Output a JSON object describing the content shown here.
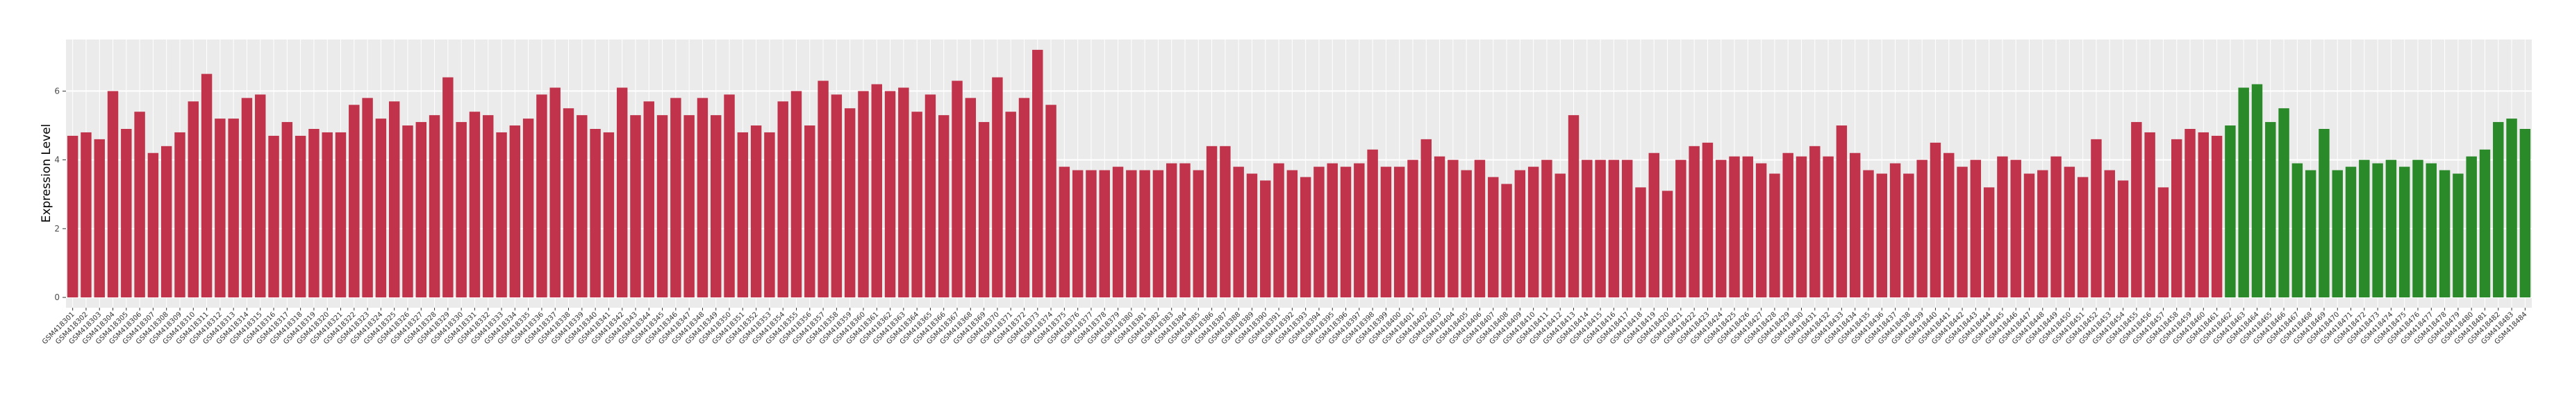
{
  "chart_data": {
    "type": "bar",
    "y_label": "Expression Level",
    "categories": [
      "GSM418301",
      "GSM418302",
      "GSM418303",
      "GSM418304",
      "GSM418305",
      "GSM418306",
      "GSM418307",
      "GSM418308",
      "GSM418309",
      "GSM418310",
      "GSM418311",
      "GSM418312",
      "GSM418313",
      "GSM418314",
      "GSM418315",
      "GSM418316",
      "GSM418317",
      "GSM418318",
      "GSM418319",
      "GSM418320",
      "GSM418321",
      "GSM418322",
      "GSM418323",
      "GSM418324",
      "GSM418325",
      "GSM418326",
      "GSM418327",
      "GSM418328",
      "GSM418329",
      "GSM418330",
      "GSM418331",
      "GSM418332",
      "GSM418333",
      "GSM418334",
      "GSM418335",
      "GSM418336",
      "GSM418337",
      "GSM418338",
      "GSM418339",
      "GSM418340",
      "GSM418341",
      "GSM418342",
      "GSM418343",
      "GSM418344",
      "GSM418345",
      "GSM418346",
      "GSM418347",
      "GSM418348",
      "GSM418349",
      "GSM418350",
      "GSM418351",
      "GSM418352",
      "GSM418353",
      "GSM418354",
      "GSM418355",
      "GSM418356",
      "GSM418357",
      "GSM418358",
      "GSM418359",
      "GSM418360",
      "GSM418361",
      "GSM418362",
      "GSM418363",
      "GSM418364",
      "GSM418365",
      "GSM418366",
      "GSM418367",
      "GSM418368",
      "GSM418369",
      "GSM418370",
      "GSM418371",
      "GSM418372",
      "GSM418373",
      "GSM418374",
      "GSM418375",
      "GSM418376",
      "GSM418377",
      "GSM418378",
      "GSM418379",
      "GSM418380",
      "GSM418381",
      "GSM418382",
      "GSM418383",
      "GSM418384",
      "GSM418385",
      "GSM418386",
      "GSM418387",
      "GSM418388",
      "GSM418389",
      "GSM418390",
      "GSM418391",
      "GSM418392",
      "GSM418393",
      "GSM418394",
      "GSM418395",
      "GSM418396",
      "GSM418397",
      "GSM418398",
      "GSM418399",
      "GSM418400",
      "GSM418401",
      "GSM418402",
      "GSM418403",
      "GSM418404",
      "GSM418405",
      "GSM418406",
      "GSM418407",
      "GSM418408",
      "GSM418409",
      "GSM418410",
      "GSM418411",
      "GSM418412",
      "GSM418413",
      "GSM418414",
      "GSM418415",
      "GSM418416",
      "GSM418417",
      "GSM418418",
      "GSM418419",
      "GSM418420",
      "GSM418421",
      "GSM418422",
      "GSM418423",
      "GSM418424",
      "GSM418425",
      "GSM418426",
      "GSM418427",
      "GSM418428",
      "GSM418429",
      "GSM418430",
      "GSM418431",
      "GSM418432",
      "GSM418433",
      "GSM418434",
      "GSM418435",
      "GSM418436",
      "GSM418437",
      "GSM418438",
      "GSM418439",
      "GSM418440",
      "GSM418441",
      "GSM418442",
      "GSM418443",
      "GSM418444",
      "GSM418445",
      "GSM418446",
      "GSM418447",
      "GSM418448",
      "GSM418449",
      "GSM418450",
      "GSM418451",
      "GSM418452",
      "GSM418453",
      "GSM418454",
      "GSM418455",
      "GSM418456",
      "GSM418457",
      "GSM418458",
      "GSM418459",
      "GSM418460",
      "GSM418461",
      "GSM418462",
      "GSM418463",
      "GSM418464",
      "GSM418465",
      "GSM418466",
      "GSM418467",
      "GSM418468",
      "GSM418469",
      "GSM418470",
      "GSM418471",
      "GSM418472",
      "GSM418473",
      "GSM418474",
      "GSM418475",
      "GSM418476",
      "GSM418477",
      "GSM418478",
      "GSM418479",
      "GSM418480",
      "GSM418481",
      "GSM418482",
      "GSM418483",
      "GSM418484"
    ],
    "values": [
      4.7,
      4.8,
      4.6,
      6.0,
      4.9,
      5.4,
      4.2,
      4.4,
      4.8,
      5.7,
      6.5,
      5.2,
      5.2,
      5.8,
      5.9,
      4.7,
      5.1,
      4.7,
      4.9,
      4.8,
      4.8,
      5.6,
      5.8,
      5.2,
      5.7,
      5.0,
      5.1,
      5.3,
      6.4,
      5.1,
      5.4,
      5.3,
      4.8,
      5.0,
      5.2,
      5.9,
      6.1,
      5.5,
      5.3,
      4.9,
      4.8,
      6.1,
      5.3,
      5.7,
      5.3,
      5.8,
      5.3,
      5.8,
      5.3,
      5.9,
      4.8,
      5.0,
      4.8,
      5.7,
      6.0,
      5.0,
      6.3,
      5.9,
      5.5,
      6.0,
      6.2,
      6.0,
      6.1,
      5.4,
      5.9,
      5.3,
      6.3,
      5.8,
      5.1,
      6.4,
      5.4,
      5.8,
      7.2,
      5.6,
      3.8,
      3.7,
      3.7,
      3.7,
      3.8,
      3.7,
      3.7,
      3.7,
      3.9,
      3.9,
      3.7,
      4.4,
      4.4,
      3.8,
      3.6,
      3.4,
      3.9,
      3.7,
      3.5,
      3.8,
      3.9,
      3.8,
      3.9,
      4.3,
      3.8,
      3.8,
      4.0,
      4.6,
      4.1,
      4.0,
      3.7,
      4.0,
      3.5,
      3.3,
      3.7,
      3.8,
      4.0,
      3.6,
      5.3,
      4.0,
      4.0,
      4.0,
      4.0,
      3.2,
      4.2,
      3.1,
      4.0,
      4.4,
      4.5,
      4.0,
      4.1,
      4.1,
      3.9,
      3.6,
      4.2,
      4.1,
      4.4,
      4.1,
      5.0,
      4.2,
      3.7,
      3.6,
      3.9,
      3.6,
      4.0,
      4.5,
      4.2,
      3.8,
      4.0,
      3.2,
      4.1,
      4.0,
      3.6,
      3.7,
      4.1,
      3.8,
      3.5,
      4.6,
      3.7,
      3.4,
      5.1,
      4.8,
      3.2,
      4.6,
      4.9,
      4.8,
      4.7,
      5.0,
      6.1,
      6.2,
      5.1,
      5.5,
      3.9,
      3.7,
      4.9,
      3.7,
      3.8,
      4.0,
      3.9,
      4.0,
      3.8,
      4.0,
      3.9,
      3.7,
      3.6,
      4.1,
      4.3,
      5.1,
      5.2,
      4.9
    ],
    "colors": [
      "#c0334a",
      "#c0334a",
      "#c0334a",
      "#c0334a",
      "#c0334a",
      "#c0334a",
      "#c0334a",
      "#c0334a",
      "#c0334a",
      "#c0334a",
      "#c0334a",
      "#c0334a",
      "#c0334a",
      "#c0334a",
      "#c0334a",
      "#c0334a",
      "#c0334a",
      "#c0334a",
      "#c0334a",
      "#c0334a",
      "#c0334a",
      "#c0334a",
      "#c0334a",
      "#c0334a",
      "#c0334a",
      "#c0334a",
      "#c0334a",
      "#c0334a",
      "#c0334a",
      "#c0334a",
      "#c0334a",
      "#c0334a",
      "#c0334a",
      "#c0334a",
      "#c0334a",
      "#c0334a",
      "#c0334a",
      "#c0334a",
      "#c0334a",
      "#c0334a",
      "#c0334a",
      "#c0334a",
      "#c0334a",
      "#c0334a",
      "#c0334a",
      "#c0334a",
      "#c0334a",
      "#c0334a",
      "#c0334a",
      "#c0334a",
      "#c0334a",
      "#c0334a",
      "#c0334a",
      "#c0334a",
      "#c0334a",
      "#c0334a",
      "#c0334a",
      "#c0334a",
      "#c0334a",
      "#c0334a",
      "#c0334a",
      "#c0334a",
      "#c0334a",
      "#c0334a",
      "#c0334a",
      "#c0334a",
      "#c0334a",
      "#c0334a",
      "#c0334a",
      "#c0334a",
      "#c0334a",
      "#c0334a",
      "#c0334a",
      "#c0334a",
      "#c0334a",
      "#c0334a",
      "#c0334a",
      "#c0334a",
      "#c0334a",
      "#c0334a",
      "#c0334a",
      "#c0334a",
      "#c0334a",
      "#c0334a",
      "#c0334a",
      "#c0334a",
      "#c0334a",
      "#c0334a",
      "#c0334a",
      "#c0334a",
      "#c0334a",
      "#c0334a",
      "#c0334a",
      "#c0334a",
      "#c0334a",
      "#c0334a",
      "#c0334a",
      "#c0334a",
      "#c0334a",
      "#c0334a",
      "#c0334a",
      "#c0334a",
      "#c0334a",
      "#c0334a",
      "#c0334a",
      "#c0334a",
      "#c0334a",
      "#c0334a",
      "#c0334a",
      "#c0334a",
      "#c0334a",
      "#c0334a",
      "#c0334a",
      "#c0334a",
      "#c0334a",
      "#c0334a",
      "#c0334a",
      "#c0334a",
      "#c0334a",
      "#c0334a",
      "#c0334a",
      "#c0334a",
      "#c0334a",
      "#c0334a",
      "#c0334a",
      "#c0334a",
      "#c0334a",
      "#c0334a",
      "#c0334a",
      "#c0334a",
      "#c0334a",
      "#c0334a",
      "#c0334a",
      "#c0334a",
      "#c0334a",
      "#c0334a",
      "#c0334a",
      "#c0334a",
      "#c0334a",
      "#c0334a",
      "#c0334a",
      "#c0334a",
      "#c0334a",
      "#c0334a",
      "#c0334a",
      "#c0334a",
      "#c0334a",
      "#c0334a",
      "#c0334a",
      "#c0334a",
      "#c0334a",
      "#c0334a",
      "#c0334a",
      "#c0334a",
      "#c0334a",
      "#c0334a",
      "#c0334a",
      "#c0334a",
      "#c0334a",
      "#c0334a",
      "#c0334a",
      "#2a8a2a",
      "#2a8a2a",
      "#2a8a2a",
      "#2a8a2a",
      "#2a8a2a",
      "#2a8a2a",
      "#2a8a2a",
      "#2a8a2a",
      "#2a8a2a",
      "#2a8a2a",
      "#2a8a2a",
      "#2a8a2a",
      "#2a8a2a",
      "#2a8a2a",
      "#2a8a2a",
      "#2a8a2a",
      "#2a8a2a",
      "#2a8a2a",
      "#2a8a2a",
      "#2a8a2a",
      "#2a8a2a",
      "#2a8a2a",
      "#2a8a2a"
    ],
    "ylim": [
      -0.3,
      7.5
    ],
    "yticks": [
      0,
      2,
      4,
      6
    ],
    "grid": true
  }
}
